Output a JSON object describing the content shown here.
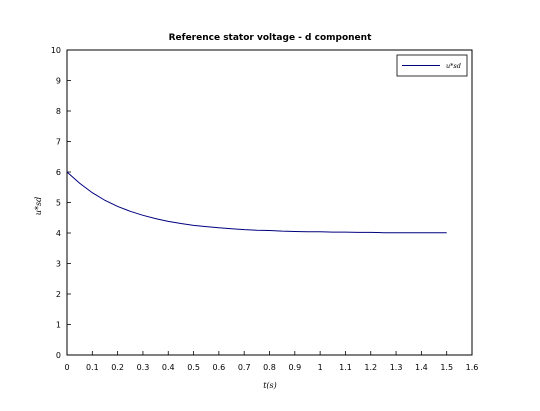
{
  "chart_data": {
    "type": "line",
    "title": "Reference stator voltage - d component",
    "xlabel": "t(s)",
    "ylabel": "u*sd",
    "xlim": [
      0,
      1.6
    ],
    "ylim": [
      0,
      10
    ],
    "x_ticks": [
      "0",
      "0.1",
      "0.2",
      "0.3",
      "0.4",
      "0.5",
      "0.6",
      "0.7",
      "0.8",
      "0.9",
      "1",
      "1.1",
      "1.2",
      "1.3",
      "1.4",
      "1.5",
      "1.6"
    ],
    "y_ticks": [
      "0",
      "1",
      "2",
      "3",
      "4",
      "5",
      "6",
      "7",
      "8",
      "9",
      "10"
    ],
    "grid": false,
    "legend_position": "top-right",
    "series": [
      {
        "name": "u*sd",
        "color": "#00007f",
        "x": [
          0,
          0.05,
          0.1,
          0.15,
          0.2,
          0.25,
          0.3,
          0.35,
          0.4,
          0.45,
          0.5,
          0.55,
          0.6,
          0.65,
          0.7,
          0.75,
          0.8,
          0.85,
          0.9,
          0.95,
          1.0,
          1.05,
          1.1,
          1.15,
          1.2,
          1.25,
          1.3,
          1.35,
          1.4,
          1.45,
          1.5
        ],
        "y": [
          6.0,
          5.63,
          5.32,
          5.07,
          4.87,
          4.71,
          4.58,
          4.47,
          4.38,
          4.31,
          4.25,
          4.21,
          4.17,
          4.14,
          4.11,
          4.09,
          4.08,
          4.06,
          4.05,
          4.04,
          4.04,
          4.03,
          4.03,
          4.02,
          4.02,
          4.01,
          4.01,
          4.01,
          4.01,
          4.01,
          4.01
        ]
      }
    ]
  }
}
